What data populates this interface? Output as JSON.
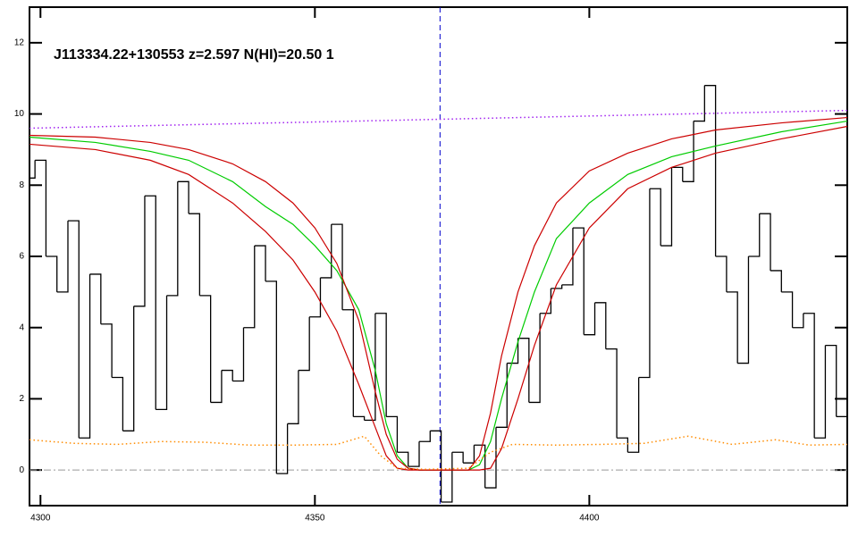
{
  "chart_data": {
    "type": "line",
    "annotation": "J113334.22+130553 z=2.597 N(HI)=20.50 1",
    "xlim": [
      4298,
      4447
    ],
    "ylim": [
      -1,
      13
    ],
    "xticks": [
      4300,
      4350,
      4400
    ],
    "yticks": [
      0,
      2,
      4,
      6,
      8,
      10,
      12
    ],
    "hlines": [
      0
    ],
    "vlines": [
      4372.8
    ],
    "series": [
      {
        "color": "#000000",
        "style": "step",
        "x": [
          4298,
          4300,
          4302,
          4304,
          4306,
          4308,
          4310,
          4312,
          4314,
          4316,
          4318,
          4320,
          4322,
          4324,
          4326,
          4328,
          4330,
          4332,
          4334,
          4336,
          4338,
          4340,
          4342,
          4344,
          4346,
          4348,
          4350,
          4352,
          4354,
          4356,
          4358,
          4360,
          4362,
          4364,
          4366,
          4368,
          4370,
          4372,
          4374,
          4376,
          4378,
          4380,
          4382,
          4384,
          4386,
          4388,
          4390,
          4392,
          4394,
          4396,
          4398,
          4400,
          4402,
          4404,
          4406,
          4408,
          4410,
          4412,
          4414,
          4416,
          4418,
          4420,
          4422,
          4424,
          4426,
          4428,
          4430,
          4432,
          4434,
          4436,
          4438,
          4440,
          4442,
          4444,
          4446
        ],
        "values": [
          8.2,
          8.7,
          6.0,
          5.0,
          7.0,
          0.9,
          5.5,
          4.1,
          2.6,
          1.1,
          4.6,
          7.7,
          1.7,
          4.9,
          8.1,
          7.2,
          4.9,
          1.9,
          2.8,
          2.5,
          4.0,
          6.3,
          5.3,
          -0.1,
          1.3,
          2.8,
          4.3,
          5.4,
          6.9,
          4.5,
          1.5,
          1.4,
          4.4,
          1.5,
          0.5,
          0.1,
          0.8,
          1.1,
          -0.9,
          0.5,
          0.2,
          0.7,
          -0.5,
          1.2,
          3.0,
          3.7,
          1.9,
          4.4,
          5.1,
          5.2,
          6.8,
          3.8,
          4.7,
          3.4,
          0.9,
          0.5,
          2.6,
          7.9,
          6.3,
          8.5,
          8.1,
          9.8,
          10.8,
          6.0,
          5.0,
          3.0,
          6.0,
          7.2,
          5.6,
          5.0,
          4.0,
          4.4,
          0.9,
          3.5,
          1.5
        ]
      },
      {
        "color": "#00cc00",
        "style": "solid",
        "x": [
          4298,
          4310,
          4320,
          4327,
          4335,
          4341,
          4346,
          4350,
          4354,
          4358,
          4361,
          4363,
          4365,
          4367,
          4369,
          4378,
          4380,
          4382,
          4384,
          4387,
          4390,
          4394,
          4400,
          4407,
          4415,
          4423,
          4435,
          4447
        ],
        "values": [
          9.35,
          9.2,
          8.95,
          8.7,
          8.1,
          7.4,
          6.9,
          6.3,
          5.6,
          4.5,
          2.8,
          1.3,
          0.4,
          0.05,
          0,
          0,
          0.15,
          0.8,
          2.0,
          3.6,
          5.0,
          6.5,
          7.5,
          8.3,
          8.8,
          9.1,
          9.5,
          9.8
        ]
      },
      {
        "color": "#cc0000",
        "style": "solid",
        "x": [
          4298,
          4310,
          4320,
          4327,
          4335,
          4341,
          4346,
          4350,
          4354,
          4358,
          4361,
          4363,
          4365,
          4367,
          4380,
          4382,
          4384,
          4387,
          4390,
          4394,
          4400,
          4407,
          4415,
          4423,
          4435,
          4447
        ],
        "values": [
          9.15,
          9.0,
          8.7,
          8.3,
          7.5,
          6.7,
          5.9,
          5.0,
          3.9,
          2.4,
          1.2,
          0.4,
          0.05,
          0,
          0,
          0.05,
          0.6,
          2.0,
          3.5,
          5.2,
          6.8,
          7.9,
          8.5,
          8.9,
          9.3,
          9.65
        ]
      },
      {
        "color": "#cc0000",
        "style": "solid",
        "x": [
          4298,
          4310,
          4320,
          4327,
          4335,
          4341,
          4346,
          4350,
          4354,
          4358,
          4361,
          4363,
          4365,
          4367,
          4369,
          4378,
          4380,
          4382,
          4384,
          4387,
          4390,
          4394,
          4400,
          4407,
          4415,
          4423,
          4435,
          4447
        ],
        "values": [
          9.4,
          9.35,
          9.2,
          9.0,
          8.6,
          8.1,
          7.5,
          6.8,
          5.8,
          4.2,
          2.2,
          1.0,
          0.3,
          0.05,
          0,
          0,
          0.4,
          1.6,
          3.2,
          5.0,
          6.3,
          7.5,
          8.4,
          8.9,
          9.3,
          9.55,
          9.75,
          9.9
        ]
      },
      {
        "color": "#a020f0",
        "style": "dotted",
        "x": [
          4298,
          4447
        ],
        "values": [
          9.6,
          10.1
        ]
      },
      {
        "color": "#ff8c00",
        "style": "dotted",
        "x": [
          4298,
          4306,
          4314,
          4322,
          4330,
          4338,
          4346,
          4354,
          4359,
          4362,
          4365,
          4370,
          4378,
          4382,
          4386,
          4394,
          4402,
          4410,
          4418,
          4426,
          4434,
          4440,
          4447
        ],
        "values": [
          0.85,
          0.75,
          0.72,
          0.8,
          0.78,
          0.7,
          0.7,
          0.72,
          0.95,
          0.4,
          0.05,
          0.02,
          0.05,
          0.5,
          0.72,
          0.7,
          0.72,
          0.75,
          0.95,
          0.72,
          0.85,
          0.7,
          0.72
        ]
      }
    ]
  }
}
